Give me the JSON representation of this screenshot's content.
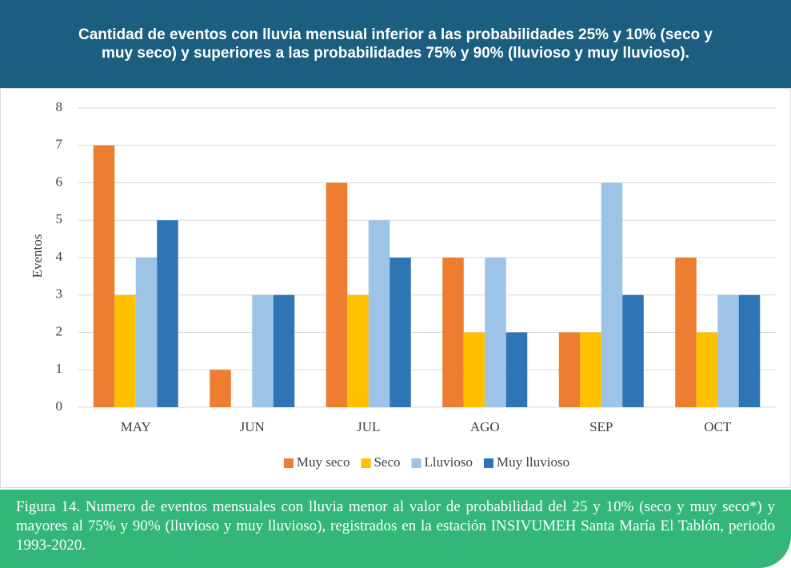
{
  "chart_data": {
    "type": "bar",
    "title": "Cantidad de eventos con lluvia mensual inferior a las probabilidades 25% y 10% (seco y muy seco) y superiores a las probabilidades 75% y 90% (lluvioso y muy lluvioso).",
    "y_label": "Eventos",
    "categories": [
      "MAY",
      "JUN",
      "JUL",
      "AGO",
      "SEP",
      "OCT"
    ],
    "series": [
      {
        "name": "Muy seco",
        "color": "#ed7d31",
        "values": [
          7,
          1,
          6,
          4,
          2,
          4
        ]
      },
      {
        "name": "Seco",
        "color": "#ffc000",
        "values": [
          3,
          0,
          3,
          2,
          2,
          2
        ]
      },
      {
        "name": "Lluvioso",
        "color": "#9dc3e6",
        "values": [
          4,
          3,
          5,
          4,
          6,
          3
        ]
      },
      {
        "name": "Muy lluvioso",
        "color": "#2e75b6",
        "values": [
          5,
          3,
          4,
          2,
          3,
          3
        ]
      }
    ],
    "ylim": [
      0,
      8
    ],
    "yticks": [
      0,
      1,
      2,
      3,
      4,
      5,
      6,
      7,
      8
    ],
    "grid": true,
    "legend": "bottom",
    "caption": "Figura 14. Numero de eventos mensuales con lluvia menor al valor de probabilidad del 25 y 10% (seco y muy seco*) y mayores al 75% y 90% (lluvioso y muy lluvioso), registrados en la estación INSIVUMEH Santa María El Tablón, periodo 1993-2020."
  }
}
